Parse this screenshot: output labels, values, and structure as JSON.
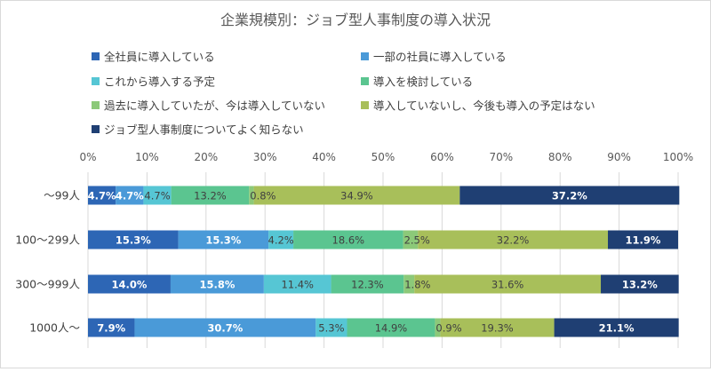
{
  "chart_data": {
    "type": "bar",
    "orientation": "horizontal",
    "stacked": "percent",
    "title": "企業規模別：ジョブ型人事制度の導入状況",
    "categories": [
      "〜99人",
      "100〜299人",
      "300〜999人",
      "1000人〜"
    ],
    "xlim": [
      0,
      100
    ],
    "x_ticks": [
      "0%",
      "10%",
      "20%",
      "30%",
      "40%",
      "50%",
      "60%",
      "70%",
      "80%",
      "90%",
      "100%"
    ],
    "grid": true,
    "legend_position": "top",
    "series": [
      {
        "name": "全社員に導入している",
        "color": "#2d66b5",
        "values": [
          4.7,
          15.3,
          14.0,
          7.9
        ],
        "labels": [
          "4.7%",
          "15.3%",
          "14.0%",
          "7.9%"
        ]
      },
      {
        "name": "一部の社員に導入している",
        "color": "#4a9ad8",
        "values": [
          4.7,
          15.3,
          15.8,
          30.7
        ],
        "labels": [
          "4.7%",
          "15.3%",
          "15.8%",
          "30.7%"
        ]
      },
      {
        "name": "これから導入する予定",
        "color": "#56c6d4",
        "values": [
          4.7,
          4.2,
          11.4,
          5.3
        ],
        "labels": [
          "4.7%",
          "4.2%",
          "11.4%",
          "5.3%"
        ]
      },
      {
        "name": "導入を検討している",
        "color": "#5bc590",
        "values": [
          13.2,
          18.6,
          12.3,
          14.9
        ],
        "labels": [
          "13.2%",
          "18.6%",
          "12.3%",
          "14.9%"
        ]
      },
      {
        "name": "過去に導入していたが、今は導入していない",
        "color": "#8cc979",
        "values": [
          0.8,
          2.5,
          1.8,
          0.9
        ],
        "labels": [
          "0.8%",
          "2.5%",
          "1.8%",
          "0.9%"
        ]
      },
      {
        "name": "導入していないし、今後も導入の予定はない",
        "color": "#a8bf5a",
        "values": [
          34.9,
          32.2,
          31.6,
          19.3
        ],
        "labels": [
          "34.9%",
          "32.2%",
          "31.6%",
          "19.3%"
        ]
      },
      {
        "name": "ジョブ型人事制度についてよく知らない",
        "color": "#1f3f73",
        "values": [
          37.2,
          11.9,
          13.2,
          21.1
        ],
        "labels": [
          "37.2%",
          "11.9%",
          "13.2%",
          "21.1%"
        ]
      }
    ]
  }
}
